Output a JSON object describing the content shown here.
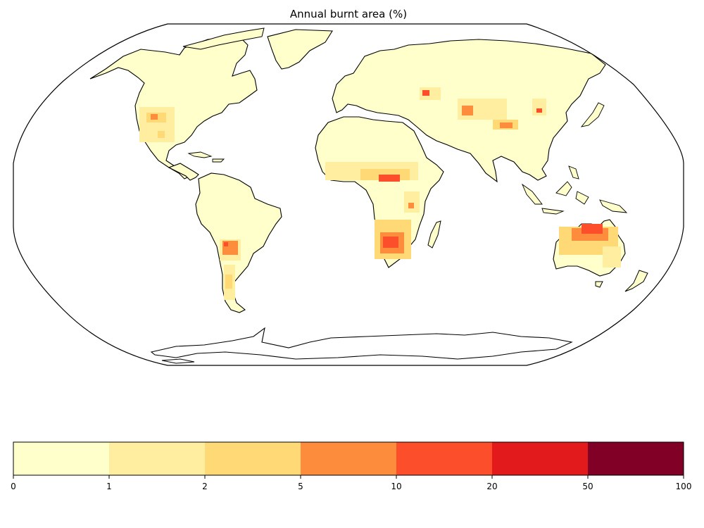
{
  "title": "Annual burnt area (%)",
  "projection": "Robinson",
  "colorbar": {
    "orientation": "horizontal",
    "boundaries": [
      0,
      1,
      2,
      5,
      10,
      20,
      50,
      100
    ],
    "tick_labels": [
      "0",
      "1",
      "2",
      "5",
      "10",
      "20",
      "50",
      "100"
    ],
    "colors": [
      "#ffffcc",
      "#ffeda0",
      "#fed976",
      "#fd8d3c",
      "#fc4e2a",
      "#e31a1c",
      "#800026"
    ]
  },
  "land_color": "#ffffcc",
  "coastline_color": "#000000",
  "hotspots": [
    {
      "region": "Southwestern North America",
      "intensity": "2-10"
    },
    {
      "region": "Sahel belt (Africa)",
      "intensity": "5-20"
    },
    {
      "region": "Southern Africa",
      "intensity": "10-20"
    },
    {
      "region": "Northern Australia",
      "intensity": "10-20"
    },
    {
      "region": "Gran Chaco (South America)",
      "intensity": "5-20"
    },
    {
      "region": "Central Asia / Kazakhstan",
      "intensity": "5-20"
    },
    {
      "region": "Mongolia / Northern China",
      "intensity": "2-10"
    }
  ]
}
